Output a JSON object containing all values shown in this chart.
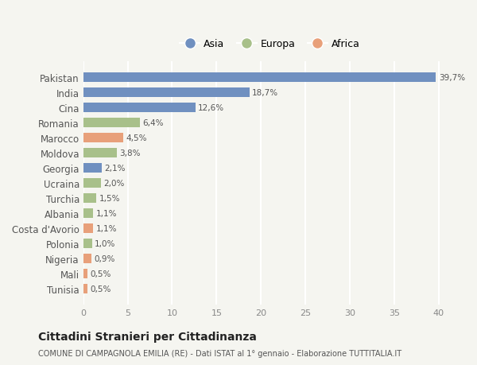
{
  "categories": [
    "Tunisia",
    "Mali",
    "Nigeria",
    "Polonia",
    "Costa d'Avorio",
    "Albania",
    "Turchia",
    "Ucraina",
    "Georgia",
    "Moldova",
    "Marocco",
    "Romania",
    "Cina",
    "India",
    "Pakistan"
  ],
  "values": [
    0.5,
    0.5,
    0.9,
    1.0,
    1.1,
    1.1,
    1.5,
    2.0,
    2.1,
    3.8,
    4.5,
    6.4,
    12.6,
    18.7,
    39.7
  ],
  "labels": [
    "0,5%",
    "0,5%",
    "0,9%",
    "1,0%",
    "1,1%",
    "1,1%",
    "1,5%",
    "2,0%",
    "2,1%",
    "3,8%",
    "4,5%",
    "6,4%",
    "12,6%",
    "18,7%",
    "39,7%"
  ],
  "colors": [
    "#e8a07a",
    "#e8a07a",
    "#e8a07a",
    "#a8c08a",
    "#e8a07a",
    "#a8c08a",
    "#a8c08a",
    "#a8c08a",
    "#7090c0",
    "#a8c08a",
    "#e8a07a",
    "#a8c08a",
    "#7090c0",
    "#7090c0",
    "#7090c0"
  ],
  "legend_labels": [
    "Asia",
    "Europa",
    "Africa"
  ],
  "legend_colors": [
    "#7090c0",
    "#a8c08a",
    "#e8a07a"
  ],
  "title": "Cittadini Stranieri per Cittadinanza",
  "subtitle": "COMUNE DI CAMPAGNOLA EMILIA (RE) - Dati ISTAT al 1° gennaio - Elaborazione TUTTITALIA.IT",
  "xlim": [
    0,
    42
  ],
  "xticks": [
    0,
    5,
    10,
    15,
    20,
    25,
    30,
    35,
    40
  ],
  "background_color": "#f5f5f0",
  "grid_color": "#ffffff",
  "bar_height": 0.65
}
